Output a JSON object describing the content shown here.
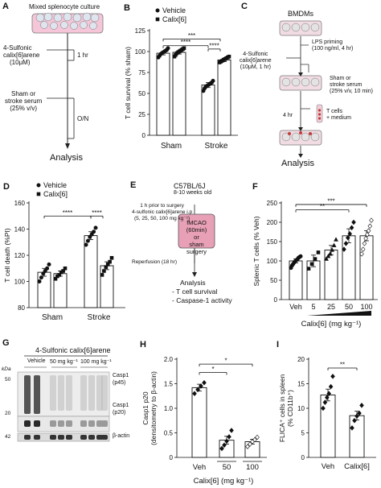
{
  "panels": {
    "A": {
      "letter": "A",
      "title": "Mixed splenocyte culture",
      "drug": "4-Sulfonic calix[6]arene (10μM)",
      "drug_line1": "4-Sulfonic",
      "drug_line2": "calix[6]arene",
      "drug_line3": "(10μM)",
      "t1": "1 hr",
      "serum_line1": "Sham or",
      "serum_line2": "stroke serum",
      "serum_line3": "(25% v/v)",
      "t2": "O/N",
      "end": "Analysis"
    },
    "C": {
      "letter": "C",
      "title": "BMDMs",
      "lps1": "LPS priming",
      "lps2": "(100 ng/ml, 4 hr)",
      "drug1": "4-Sulfonic",
      "drug2": "calix[6]arene",
      "drug3": "(10μM, 1 hr)",
      "serum1": "Sham or",
      "serum2": "stroke serum",
      "serum3": "(25% v/v, 10 min)",
      "tcells1": "T cells",
      "tcells2": "+ medium",
      "t": "4 hr",
      "end": "Analysis"
    },
    "E": {
      "letter": "E",
      "title": "C57BL/6J",
      "subtitle": "8-10 weeks old",
      "pre1": "1 h prior to surgery",
      "pre2": "4-sulfonic calix[6]arene i.p",
      "pre3": "(5, 25, 50, 100 mg kg⁻¹)",
      "box1": "fMCAO (60min)",
      "box2": "or",
      "box3": "sham surgery",
      "rep": "Reperfusion (18 hr)",
      "end1": "Analysis",
      "end2": "- T cell survival",
      "end3": "- Caspase-1 activity"
    },
    "G": {
      "letter": "G",
      "header": "4-Sulfonic calix[6]arene",
      "kda": "kDa",
      "lane_vehicle": "Vehicle",
      "lane_50": "50 mg kg⁻¹",
      "lane_100": "100 mg kg⁻¹",
      "mw": [
        "50",
        "20",
        "42"
      ],
      "band1": "Casp1",
      "band1b": "(p45)",
      "band2": "Casp1",
      "band2b": "(p20)",
      "band3": "β-actin"
    }
  },
  "chart_data": [
    {
      "id": "B",
      "letter": "B",
      "type": "bar",
      "categories": [
        "Sham",
        "Stroke"
      ],
      "series": [
        {
          "name": "Vehicle",
          "values": [
            98,
            60
          ],
          "points": [
            [
              93,
              95,
              97,
              98,
              99,
              100,
              101,
              102,
              104
            ],
            [
              53,
              56,
              58,
              59,
              60,
              61,
              62,
              63,
              65
            ]
          ]
        },
        {
          "name": "Calix[6]",
          "values": [
            99,
            90
          ],
          "points": [
            [
              94,
              96,
              98,
              99,
              100,
              101,
              102,
              103,
              104
            ],
            [
              87,
              88,
              89,
              90,
              91,
              92,
              93,
              94
            ]
          ]
        }
      ],
      "errors": [
        [
          2,
          3
        ],
        [
          2,
          2
        ]
      ],
      "ylabel": "T cell survival (% sham)",
      "ylim": [
        0,
        125
      ],
      "yticks": [
        0,
        25,
        50,
        75,
        100,
        125
      ],
      "sig": [
        "***",
        "****",
        "****"
      ],
      "legend": "top-left"
    },
    {
      "id": "D",
      "letter": "D",
      "type": "bar",
      "categories": [
        "Sham",
        "Stroke"
      ],
      "series": [
        {
          "name": "Vehicle",
          "values": [
            107,
            135
          ],
          "points": [
            [
              100,
              103,
              106,
              108,
              110,
              113
            ],
            [
              128,
              131,
              134,
              136,
              138,
              141
            ]
          ]
        },
        {
          "name": "Calix[6]",
          "values": [
            106,
            112
          ],
          "points": [
            [
              102,
              104,
              105,
              107,
              108,
              110
            ],
            [
              105,
              108,
              111,
              113,
              115,
              118
            ]
          ]
        }
      ],
      "errors": [
        [
          3,
          3
        ],
        [
          2,
          3
        ]
      ],
      "ylabel": "T cell death (%PI)",
      "ylim": [
        80,
        160
      ],
      "yticks": [
        80,
        100,
        120,
        140,
        160
      ],
      "sig": [
        "****",
        "****"
      ],
      "legend": "top-left"
    },
    {
      "id": "F",
      "letter": "F",
      "type": "bar",
      "categories": [
        "Veh",
        "5",
        "25",
        "50",
        "100"
      ],
      "values": [
        100,
        100,
        128,
        165,
        165
      ],
      "errors": [
        5,
        15,
        12,
        18,
        13
      ],
      "points": [
        [
          82,
          88,
          92,
          96,
          99,
          102,
          104,
          108,
          110,
          112
        ],
        [
          80,
          92,
          105,
          122
        ],
        [
          105,
          112,
          118,
          128,
          140,
          155
        ],
        [
          130,
          145,
          160,
          170,
          186,
          200
        ],
        [
          118,
          130,
          145,
          158,
          168,
          178,
          190,
          205
        ]
      ],
      "ylabel": "Splenic T cells (% Veh)",
      "xlabel": "Calix[6] (mg kg⁻¹)",
      "ylim": [
        0,
        250
      ],
      "yticks": [
        0,
        50,
        100,
        150,
        200,
        250
      ],
      "sig": [
        "**",
        "***"
      ]
    },
    {
      "id": "H",
      "letter": "H",
      "type": "bar",
      "categories": [
        "Veh",
        "50",
        "100"
      ],
      "values": [
        1.42,
        0.35,
        0.32
      ],
      "errors": [
        0.07,
        0.08,
        0.05
      ],
      "points": [
        [
          1.3,
          1.38,
          1.45,
          1.52
        ],
        [
          0.18,
          0.25,
          0.33,
          0.42,
          0.55
        ],
        [
          0.22,
          0.27,
          0.32,
          0.36,
          0.41
        ]
      ],
      "ylabel": "Casp1 p20 (densitometry to β-actin)",
      "ylabel1": "Casp1 p20",
      "ylabel2": "(densitometry to β-actin)",
      "xlabel": "Calix[6] (mg kg⁻¹)",
      "ylim": [
        0,
        2.0
      ],
      "yticks": [
        "0",
        "0.5",
        "1.0",
        "1.5",
        "2.0"
      ],
      "sig": [
        "*",
        "*"
      ]
    },
    {
      "id": "I",
      "letter": "I",
      "type": "bar",
      "categories": [
        "Veh",
        "Calix[6]"
      ],
      "values": [
        12.7,
        8.5
      ],
      "errors": [
        1.2,
        0.9
      ],
      "points": [
        [
          10.0,
          11.2,
          12.2,
          13.0,
          14.4,
          16.5
        ],
        [
          6.0,
          7.5,
          8.4,
          9.0,
          10.6
        ]
      ],
      "ylabel": "FLICA⁺ cells in spleen (% CD11b⁺)",
      "ylabel1": "FLICA⁺ cells in spleen",
      "ylabel2": "(% CD11b⁺)",
      "ylim": [
        0,
        20
      ],
      "yticks": [
        0,
        5,
        10,
        15,
        20
      ],
      "sig": [
        "**"
      ]
    }
  ]
}
